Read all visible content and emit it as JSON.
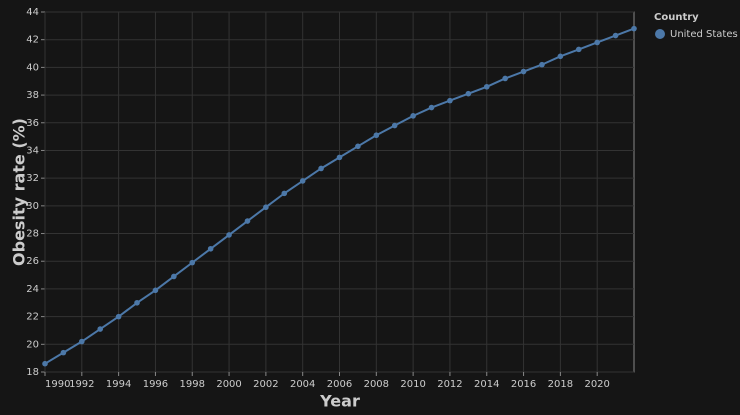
{
  "chart_data": {
    "type": "line",
    "x_label": "Year",
    "y_label": "Obesity rate (%)",
    "x": [
      1990,
      1991,
      1992,
      1993,
      1994,
      1995,
      1996,
      1997,
      1998,
      1999,
      2000,
      2001,
      2002,
      2003,
      2004,
      2005,
      2006,
      2007,
      2008,
      2009,
      2010,
      2011,
      2012,
      2013,
      2014,
      2015,
      2016,
      2017,
      2018,
      2019,
      2020,
      2021,
      2022
    ],
    "series": [
      {
        "name": "United States",
        "color": "#4c78a8",
        "values": [
          18.6,
          19.4,
          20.2,
          21.1,
          22.0,
          23.0,
          23.9,
          24.9,
          25.9,
          26.9,
          27.9,
          28.9,
          29.9,
          30.9,
          31.8,
          32.7,
          33.5,
          34.3,
          35.1,
          35.8,
          36.5,
          37.1,
          37.6,
          38.1,
          38.6,
          39.2,
          39.7,
          40.2,
          40.8,
          41.3,
          41.8,
          42.3,
          42.8
        ]
      }
    ],
    "legend_title": "Country",
    "legend_position": "right",
    "xlim": [
      1990,
      2022
    ],
    "xticks": [
      1990,
      1992,
      1994,
      1996,
      1998,
      2000,
      2002,
      2004,
      2006,
      2008,
      2010,
      2012,
      2014,
      2016,
      2018,
      2020
    ],
    "ylim": [
      18,
      44
    ],
    "yticks": [
      18,
      20,
      22,
      24,
      26,
      28,
      30,
      32,
      34,
      36,
      38,
      40,
      42,
      44
    ],
    "grid": true
  }
}
